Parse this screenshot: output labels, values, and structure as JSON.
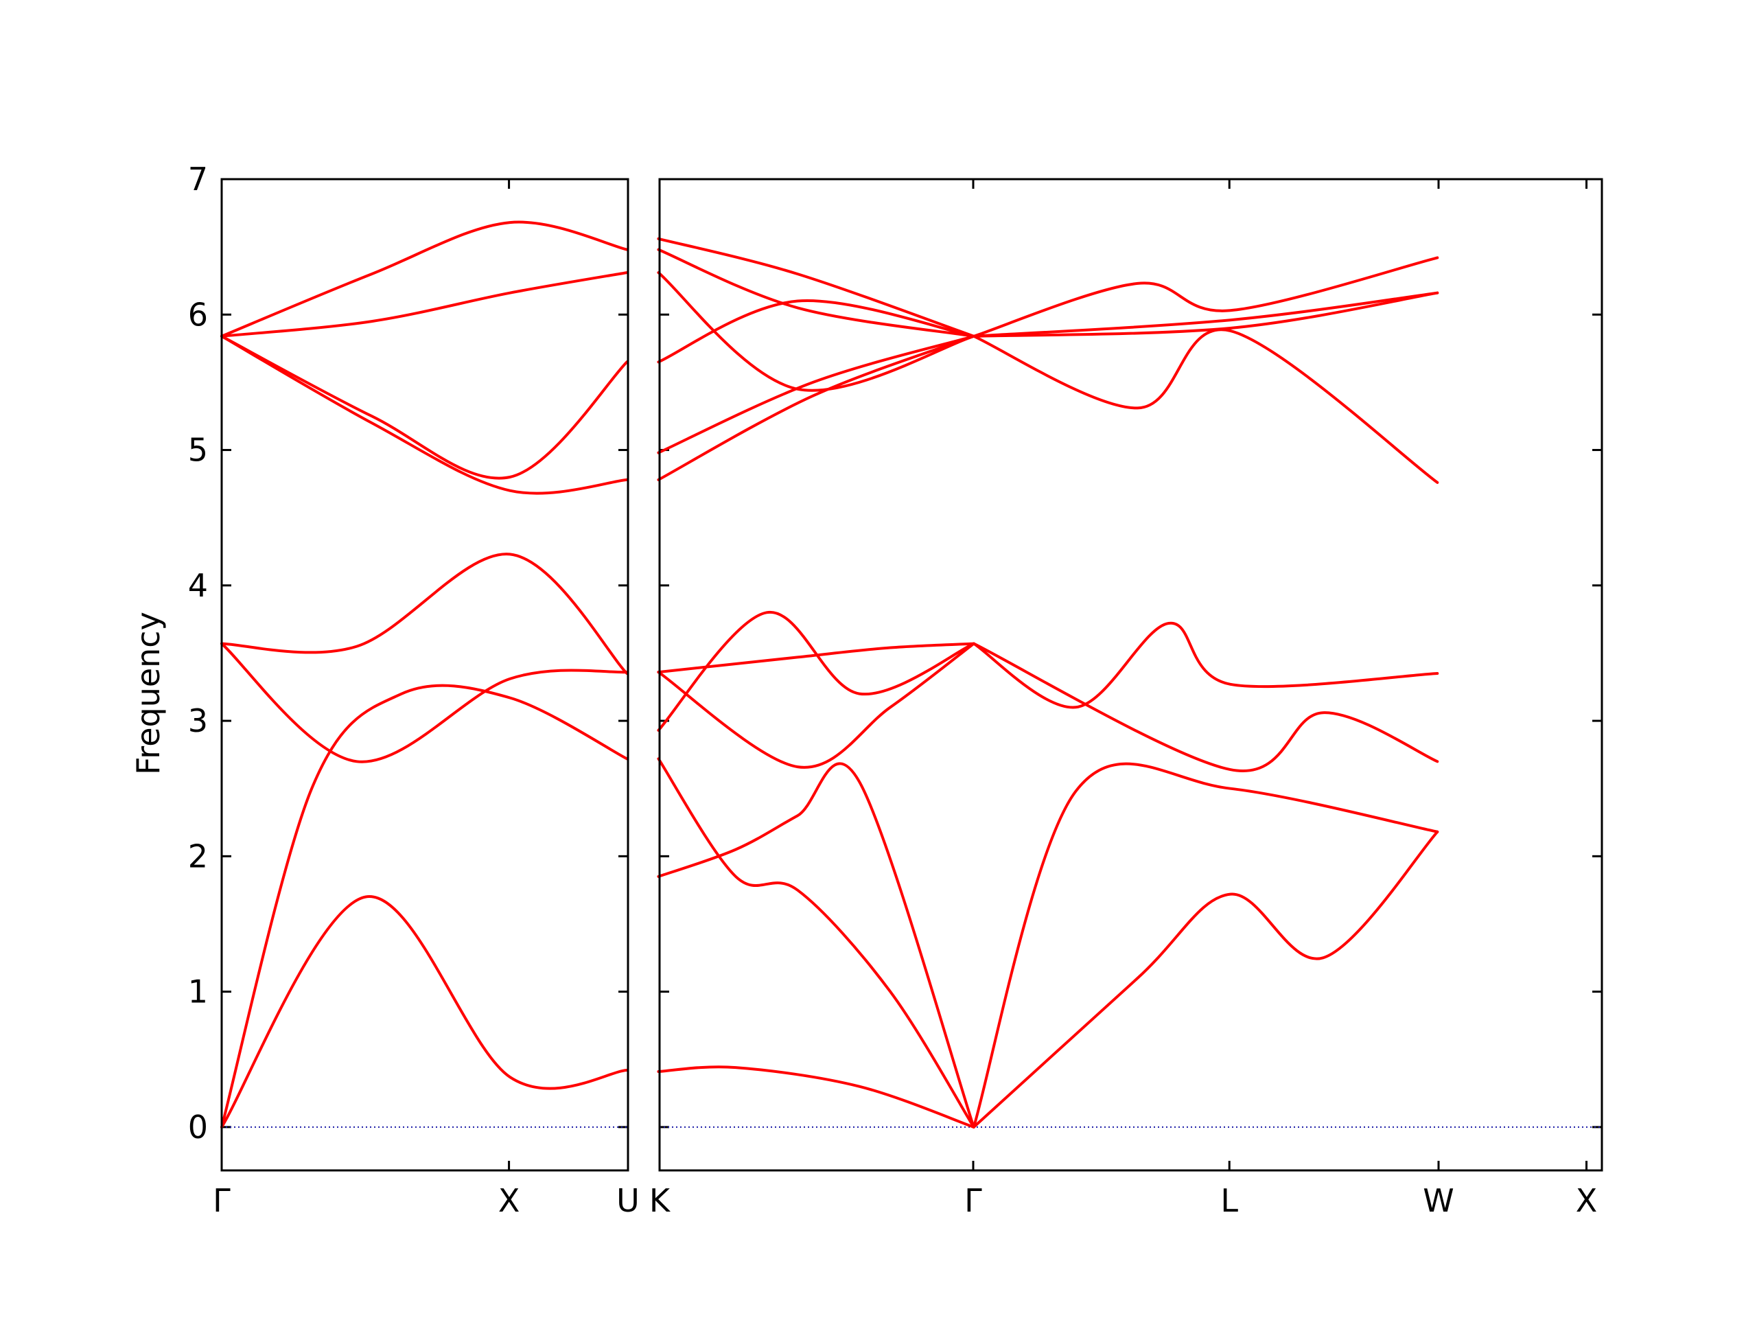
{
  "chart_data": {
    "type": "line",
    "ylabel": "Frequency",
    "ylim": [
      -0.32,
      7.0
    ],
    "y_ticks": [
      "0",
      "1",
      "2",
      "3",
      "4",
      "5",
      "6",
      "7"
    ],
    "panels": [
      {
        "x_range": [
          0,
          1.3536
        ],
        "x_ticks": [
          {
            "x": 0,
            "label": "Γ"
          },
          {
            "x": 0.9571,
            "label": "X"
          },
          {
            "x": 1.3536,
            "label": "U"
          }
        ]
      },
      {
        "x_range": [
          1.3536,
          4.4021
        ],
        "x_ticks": [
          {
            "x": 1.3536,
            "label": "K"
          },
          {
            "x": 2.3683,
            "label": "Γ"
          },
          {
            "x": 3.197,
            "label": "L"
          },
          {
            "x": 3.8737,
            "label": "W"
          },
          {
            "x": 4.3522,
            "label": "X"
          }
        ]
      }
    ],
    "zero_line": {
      "y": 0,
      "style": "dotted",
      "color": "#1a1aa6"
    },
    "series_color": "#ff0000",
    "bands": [
      {
        "panel": 0,
        "points": [
          [
            0,
            0
          ],
          [
            0.48,
            1.7
          ],
          [
            0.96,
            0.37
          ],
          [
            1.35,
            0.42
          ]
        ]
      },
      {
        "panel": 0,
        "points": [
          [
            0,
            0
          ],
          [
            0.3,
            2.5
          ],
          [
            0.6,
            3.2
          ],
          [
            0.96,
            3.17
          ],
          [
            1.35,
            2.72
          ]
        ]
      },
      {
        "panel": 0,
        "points": [
          [
            0,
            3.57
          ],
          [
            0.45,
            2.7
          ],
          [
            0.96,
            3.31
          ],
          [
            1.35,
            3.36
          ]
        ]
      },
      {
        "panel": 0,
        "points": [
          [
            0,
            3.57
          ],
          [
            0.45,
            3.55
          ],
          [
            0.96,
            4.23
          ],
          [
            1.35,
            3.35
          ]
        ]
      },
      {
        "panel": 0,
        "points": [
          [
            0,
            5.84
          ],
          [
            0.5,
            5.2
          ],
          [
            0.96,
            4.7
          ],
          [
            1.35,
            4.78
          ]
        ]
      },
      {
        "panel": 0,
        "points": [
          [
            0,
            5.84
          ],
          [
            0.5,
            5.25
          ],
          [
            0.96,
            4.8
          ],
          [
            1.35,
            5.65
          ]
        ]
      },
      {
        "panel": 0,
        "points": [
          [
            0,
            5.84
          ],
          [
            0.5,
            5.95
          ],
          [
            0.96,
            6.16
          ],
          [
            1.35,
            6.31
          ]
        ]
      },
      {
        "panel": 0,
        "points": [
          [
            0,
            5.84
          ],
          [
            0.5,
            6.3
          ],
          [
            0.96,
            6.68
          ],
          [
            1.35,
            6.48
          ]
        ]
      },
      {
        "panel": 1,
        "points": [
          [
            1.35,
            0.41
          ],
          [
            1.6,
            0.44
          ],
          [
            2.0,
            0.3
          ],
          [
            2.37,
            0
          ]
        ]
      },
      {
        "panel": 1,
        "points": [
          [
            1.35,
            2.72
          ],
          [
            1.6,
            1.85
          ],
          [
            1.8,
            1.75
          ],
          [
            2.1,
            1.0
          ],
          [
            2.37,
            0
          ]
        ]
      },
      {
        "panel": 1,
        "points": [
          [
            1.35,
            1.85
          ],
          [
            1.6,
            2.05
          ],
          [
            1.8,
            2.3
          ],
          [
            2.0,
            2.55
          ],
          [
            2.37,
            0
          ]
        ]
      },
      {
        "panel": 1,
        "points": [
          [
            1.35,
            2.93
          ],
          [
            1.7,
            3.8
          ],
          [
            2.0,
            3.2
          ],
          [
            2.37,
            3.57
          ]
        ]
      },
      {
        "panel": 1,
        "points": [
          [
            1.35,
            3.36
          ],
          [
            1.8,
            3.47
          ],
          [
            2.1,
            3.54
          ],
          [
            2.37,
            3.57
          ]
        ]
      },
      {
        "panel": 1,
        "points": [
          [
            1.35,
            3.36
          ],
          [
            1.8,
            2.66
          ],
          [
            2.1,
            3.1
          ],
          [
            2.37,
            3.57
          ]
        ]
      },
      {
        "panel": 1,
        "points": [
          [
            1.35,
            4.78
          ],
          [
            1.85,
            5.4
          ],
          [
            2.37,
            5.84
          ]
        ]
      },
      {
        "panel": 1,
        "points": [
          [
            1.35,
            4.98
          ],
          [
            1.85,
            5.5
          ],
          [
            2.37,
            5.84
          ]
        ]
      },
      {
        "panel": 1,
        "points": [
          [
            1.35,
            5.65
          ],
          [
            1.8,
            6.1
          ],
          [
            2.37,
            5.84
          ]
        ]
      },
      {
        "panel": 1,
        "points": [
          [
            1.35,
            6.31
          ],
          [
            1.8,
            5.45
          ],
          [
            2.37,
            5.84
          ]
        ]
      },
      {
        "panel": 1,
        "points": [
          [
            1.35,
            6.48
          ],
          [
            1.8,
            6.05
          ],
          [
            2.37,
            5.84
          ]
        ]
      },
      {
        "panel": 1,
        "points": [
          [
            1.35,
            6.56
          ],
          [
            1.8,
            6.3
          ],
          [
            2.37,
            5.84
          ]
        ]
      },
      {
        "panel": 2,
        "points": [
          [
            2.37,
            0
          ],
          [
            2.9,
            1.1
          ],
          [
            3.2,
            1.72
          ],
          [
            3.5,
            1.25
          ],
          [
            3.87,
            2.18
          ]
        ]
      },
      {
        "panel": 2,
        "points": [
          [
            2.37,
            0
          ],
          [
            2.7,
            2.48
          ],
          [
            3.2,
            2.5
          ],
          [
            3.87,
            2.18
          ]
        ]
      },
      {
        "panel": 2,
        "points": [
          [
            2.37,
            3.57
          ],
          [
            2.7,
            3.1
          ],
          [
            3.0,
            3.72
          ],
          [
            3.2,
            3.27
          ],
          [
            3.87,
            3.35
          ]
        ]
      },
      {
        "panel": 2,
        "points": [
          [
            2.37,
            3.57
          ],
          [
            3.2,
            2.64
          ],
          [
            3.5,
            3.06
          ],
          [
            3.87,
            2.7
          ]
        ]
      },
      {
        "panel": 2,
        "points": [
          [
            2.37,
            5.84
          ],
          [
            2.9,
            5.31
          ],
          [
            3.2,
            5.88
          ],
          [
            3.87,
            4.76
          ]
        ]
      },
      {
        "panel": 2,
        "points": [
          [
            2.37,
            5.84
          ],
          [
            3.2,
            5.9
          ],
          [
            3.87,
            6.16
          ]
        ]
      },
      {
        "panel": 2,
        "points": [
          [
            2.37,
            5.84
          ],
          [
            2.9,
            6.23
          ],
          [
            3.2,
            6.03
          ],
          [
            3.87,
            6.42
          ]
        ]
      },
      {
        "panel": 2,
        "points": [
          [
            2.37,
            5.84
          ],
          [
            3.2,
            5.96
          ],
          [
            3.87,
            6.16
          ]
        ]
      }
    ]
  }
}
